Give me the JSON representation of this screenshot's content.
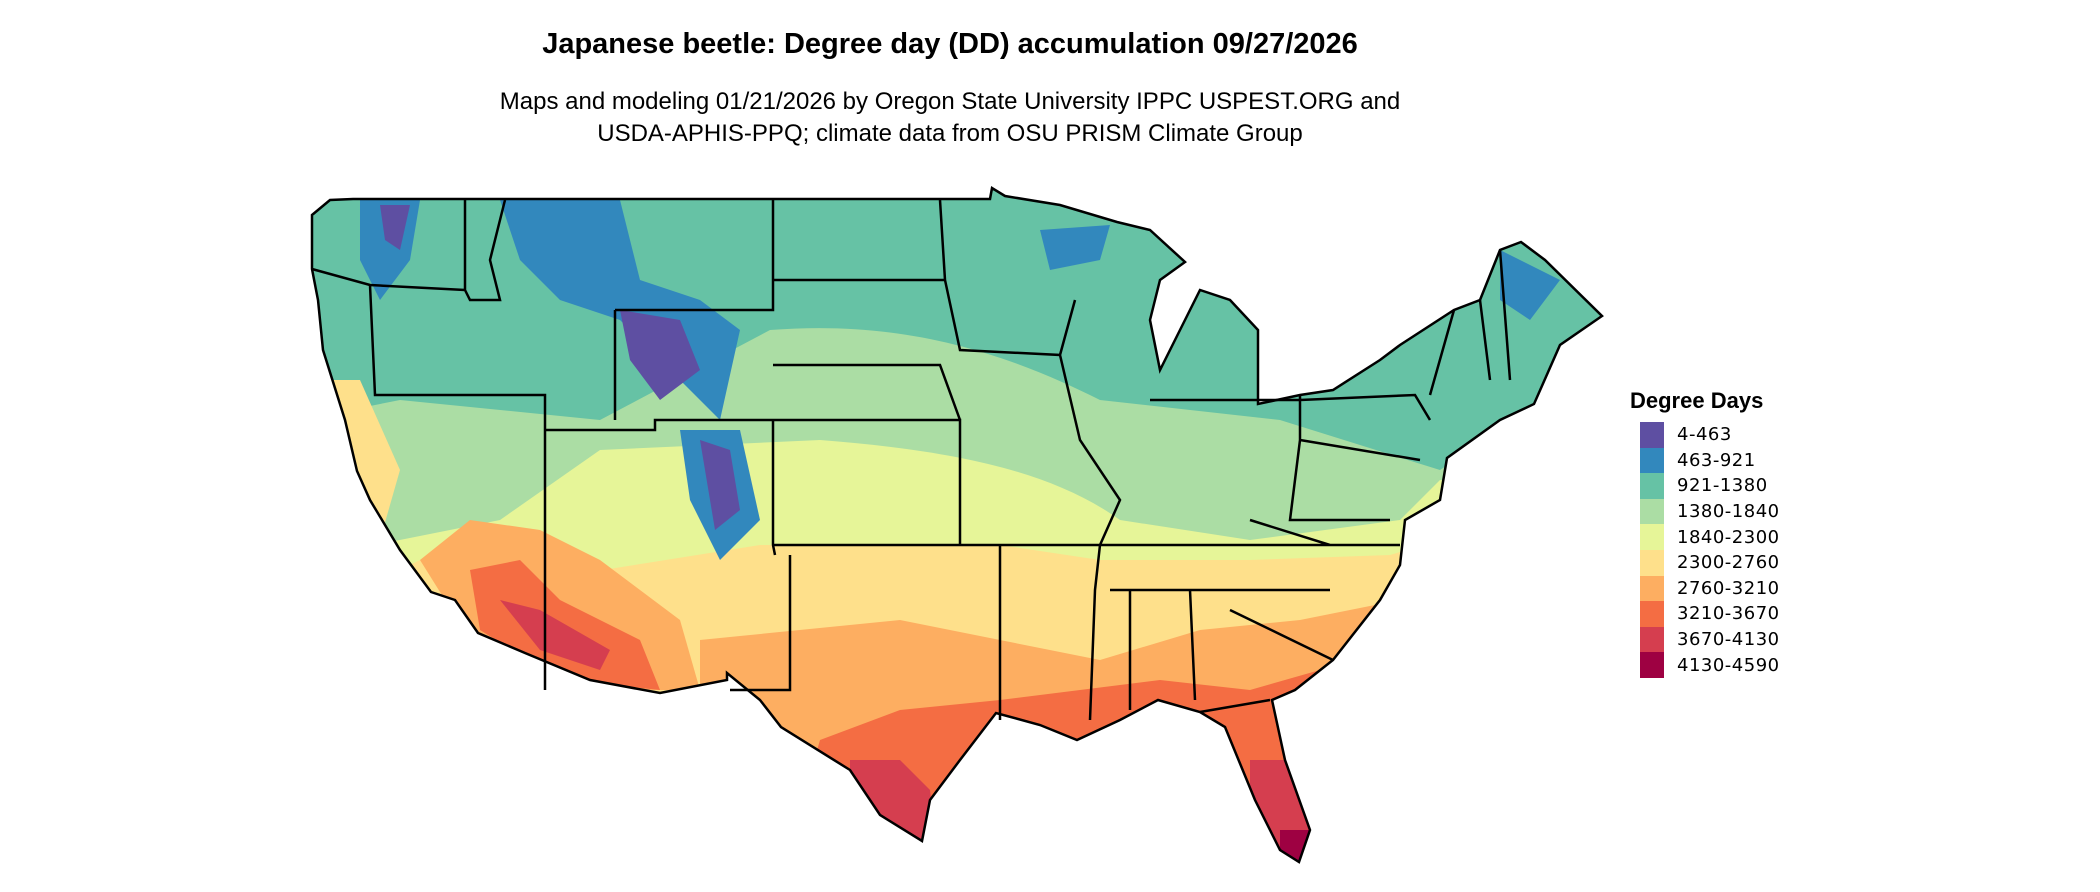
{
  "title": "Japanese beetle: Degree day (DD) accumulation 09/27/2026",
  "subtitle_lines": [
    "Maps and modeling 01/21/2026 by Oregon State University IPPC USPEST.ORG and",
    "USDA-APHIS-PPQ; climate data from OSU PRISM Climate Group"
  ],
  "legend": {
    "title": "Degree Days",
    "items": [
      {
        "label": "4-463",
        "color": "#5e4fa2"
      },
      {
        "label": "463-921",
        "color": "#3288bd"
      },
      {
        "label": "921-1380",
        "color": "#66c2a5"
      },
      {
        "label": "1380-1840",
        "color": "#abdda4"
      },
      {
        "label": "1840-2300",
        "color": "#e6f598"
      },
      {
        "label": "2300-2760",
        "color": "#fee08b"
      },
      {
        "label": "2760-3210",
        "color": "#fdae61"
      },
      {
        "label": "3210-3670",
        "color": "#f46d43"
      },
      {
        "label": "3670-4130",
        "color": "#d53e4f"
      },
      {
        "label": "4130-4590",
        "color": "#9e0142"
      }
    ]
  },
  "map": {
    "region": "Contiguous United States",
    "boundaries": "state"
  }
}
